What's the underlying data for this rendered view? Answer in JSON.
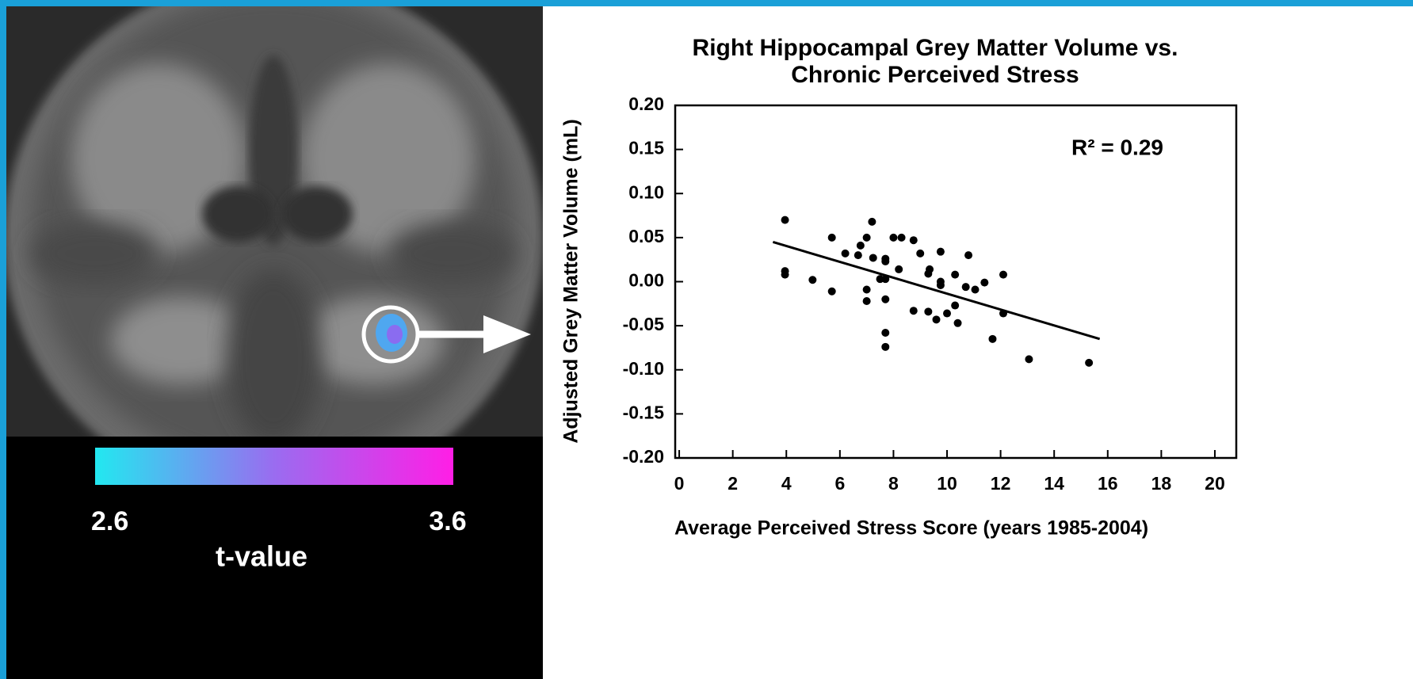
{
  "chart_data": {
    "type": "scatter",
    "title": [
      "Right Hippocampal Grey Matter Volume vs.",
      "Chronic Perceived Stress"
    ],
    "x_label": "Average Perceived Stress Score (years 1985-2004)",
    "y_label": "Adjusted Grey Matter Volume (mL)",
    "annotation": "R² = 0.29",
    "color": "#000000",
    "xlim": [
      -0.15,
      20.8
    ],
    "xticks": [
      0,
      2,
      4,
      6,
      8,
      10,
      12,
      14,
      16,
      18,
      20
    ],
    "ylim": [
      -0.2,
      0.2
    ],
    "yticks": [
      {
        "value": 0.2,
        "label": "0.20"
      },
      0.15,
      {
        "value": 0.1,
        "label": "0.10"
      },
      0.05,
      {
        "value": 0,
        "label": "0.00"
      },
      -0.05,
      {
        "value": -0.1,
        "label": "-0.10"
      },
      -0.15,
      {
        "value": -0.2,
        "label": "-0.20"
      }
    ],
    "x": [
      3.95,
      3.95,
      3.95,
      4.98,
      5.7,
      5.7,
      6.2,
      6.68,
      6.77,
      7.0,
      7.0,
      7.0,
      7.2,
      7.24,
      7.5,
      7.7,
      7.7,
      7.7,
      7.7,
      7.7,
      7.7,
      8.0,
      8.3,
      8.2,
      8.75,
      8.75,
      9.0,
      9.3,
      9.35,
      9.3,
      9.6,
      9.76,
      9.76,
      9.76,
      10.0,
      10.3,
      10.3,
      10.4,
      10.8,
      10.7,
      11.05,
      11.4,
      12.1,
      12.1,
      11.7,
      13.06,
      15.3
    ],
    "values": [
      0.07,
      0.012,
      0.008,
      0.002,
      0.05,
      -0.011,
      0.032,
      0.03,
      0.041,
      0.05,
      -0.009,
      -0.022,
      0.068,
      0.027,
      0.003,
      0.023,
      0.026,
      0.003,
      -0.02,
      -0.058,
      -0.074,
      0.05,
      0.05,
      0.014,
      0.047,
      -0.033,
      0.032,
      0.009,
      0.014,
      -0.034,
      -0.043,
      0.034,
      0.0,
      -0.004,
      -0.036,
      0.008,
      -0.027,
      -0.047,
      0.03,
      -0.006,
      -0.009,
      -0.001,
      0.008,
      -0.036,
      -0.065,
      -0.088,
      -0.092
    ],
    "fit": {
      "x": [
        3.5,
        15.7
      ],
      "values": [
        0.045,
        -0.065
      ]
    }
  },
  "colorbar": {
    "ticks": [
      2.6,
      3.6
    ],
    "label": "t-value",
    "colors": [
      "#22e8f0",
      "#9a6cf0",
      "#ff1ee6"
    ]
  }
}
